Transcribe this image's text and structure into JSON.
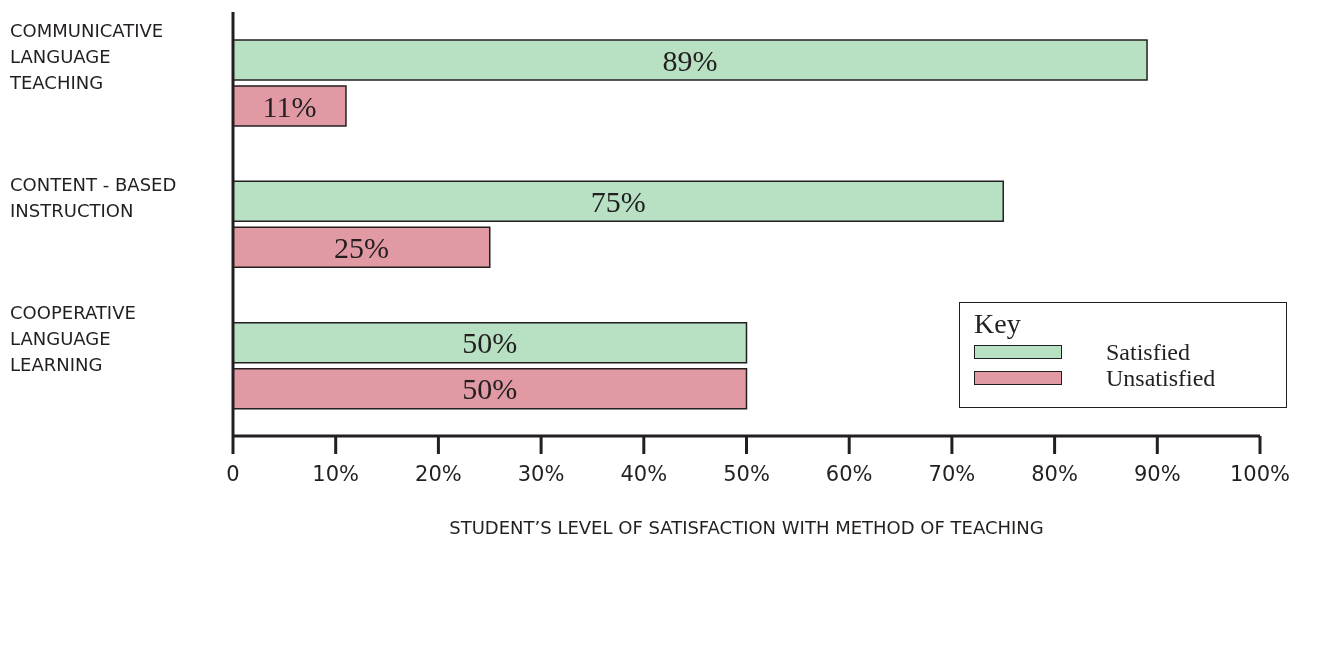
{
  "chart_data": {
    "type": "bar",
    "orientation": "horizontal",
    "xlabel": "STUDENT’S LEVEL OF SATISFACTION WITH METHOD OF TEACHING",
    "legend_title": "Key",
    "legend": "right",
    "categories": [
      "COMMUNICATIVE LANGUAGE TEACHING",
      "CONTENT - BASED INSTRUCTION",
      "COOPERATIVE LANGUAGE LEARNING"
    ],
    "series": [
      {
        "name": "Satisfied",
        "color": "#b8e0c2",
        "values": [
          89,
          75,
          50
        ],
        "value_labels": [
          "89%",
          "75%",
          "50%"
        ]
      },
      {
        "name": "Unsatisfied",
        "color": "#e19aa3",
        "values": [
          11,
          25,
          50
        ],
        "value_labels": [
          "11%",
          "25%",
          "50%"
        ]
      }
    ],
    "xlim": [
      0,
      100
    ],
    "xticks": [
      0,
      {
        "value": 10,
        "label": "10%"
      },
      {
        "value": 20,
        "label": "20%"
      },
      {
        "value": 30,
        "label": "30%"
      },
      {
        "value": 40,
        "label": "40%"
      },
      {
        "value": 50,
        "label": "50%"
      },
      {
        "value": 60,
        "label": "60%"
      },
      {
        "value": 70,
        "label": "70%"
      },
      {
        "value": 80,
        "label": "80%"
      },
      {
        "value": 90,
        "label": "90%"
      },
      {
        "value": 100,
        "label": "100%"
      }
    ],
    "grid": false
  }
}
